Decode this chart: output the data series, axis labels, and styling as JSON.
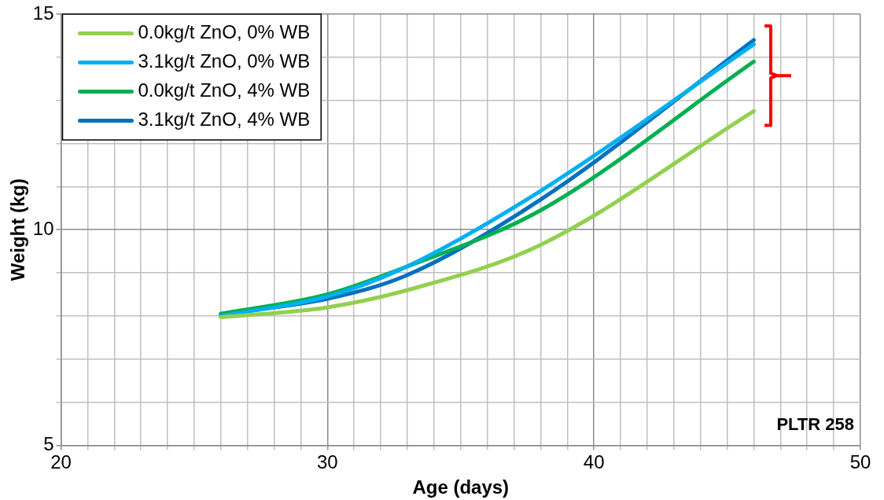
{
  "chart_data": {
    "type": "line",
    "xlabel": "Age (days)",
    "ylabel": "Weight (kg)",
    "x": [
      26,
      30,
      33,
      38,
      46
    ],
    "series": [
      {
        "name": "0.0kg/t ZnO, 0% WB",
        "color": "#92d050",
        "values": [
          7.97,
          8.2,
          8.6,
          9.65,
          12.75
        ]
      },
      {
        "name": "3.1kg/t ZnO, 0% WB",
        "color": "#00b0f0",
        "values": [
          8.0,
          8.45,
          9.15,
          10.9,
          14.3
        ]
      },
      {
        "name": "0.0kg/t ZnO, 4% WB",
        "color": "#00b050",
        "values": [
          8.05,
          8.5,
          9.15,
          10.45,
          13.9
        ]
      },
      {
        "name": "3.1kg/t ZnO, 4% WB",
        "color": "#0070c0",
        "values": [
          8.05,
          8.4,
          8.95,
          10.7,
          14.4
        ]
      }
    ],
    "xlim": [
      20,
      50
    ],
    "xticks": [
      20,
      30,
      40,
      50
    ],
    "ylim": [
      5,
      15
    ],
    "yticks": [
      5,
      10,
      15
    ],
    "grid": true,
    "legend": "top left",
    "marker": "none",
    "line_style": "solid",
    "annotations": [
      "PLTR 258"
    ]
  }
}
